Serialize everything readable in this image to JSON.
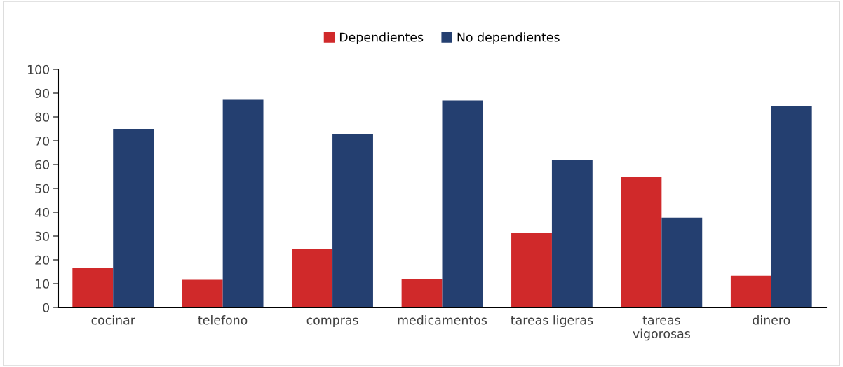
{
  "chart_data": {
    "type": "bar",
    "categories": [
      "cocinar",
      "telefono",
      "compras",
      "medicamentos",
      "tareas ligeras",
      "tareas\nvigorosas",
      "dinero"
    ],
    "series": [
      {
        "name": "Dependientes",
        "color": "#d0292a",
        "values": [
          16.7,
          11.6,
          24.4,
          12.0,
          31.4,
          54.7,
          13.3
        ]
      },
      {
        "name": "No dependientes",
        "color": "#243f70",
        "values": [
          75.0,
          87.2,
          72.9,
          86.9,
          61.8,
          37.7,
          84.5
        ]
      }
    ],
    "ylim": [
      0,
      100
    ],
    "yticks": [
      0,
      10,
      20,
      30,
      40,
      50,
      60,
      70,
      80,
      90,
      100
    ],
    "grid": false,
    "legend": "top"
  }
}
